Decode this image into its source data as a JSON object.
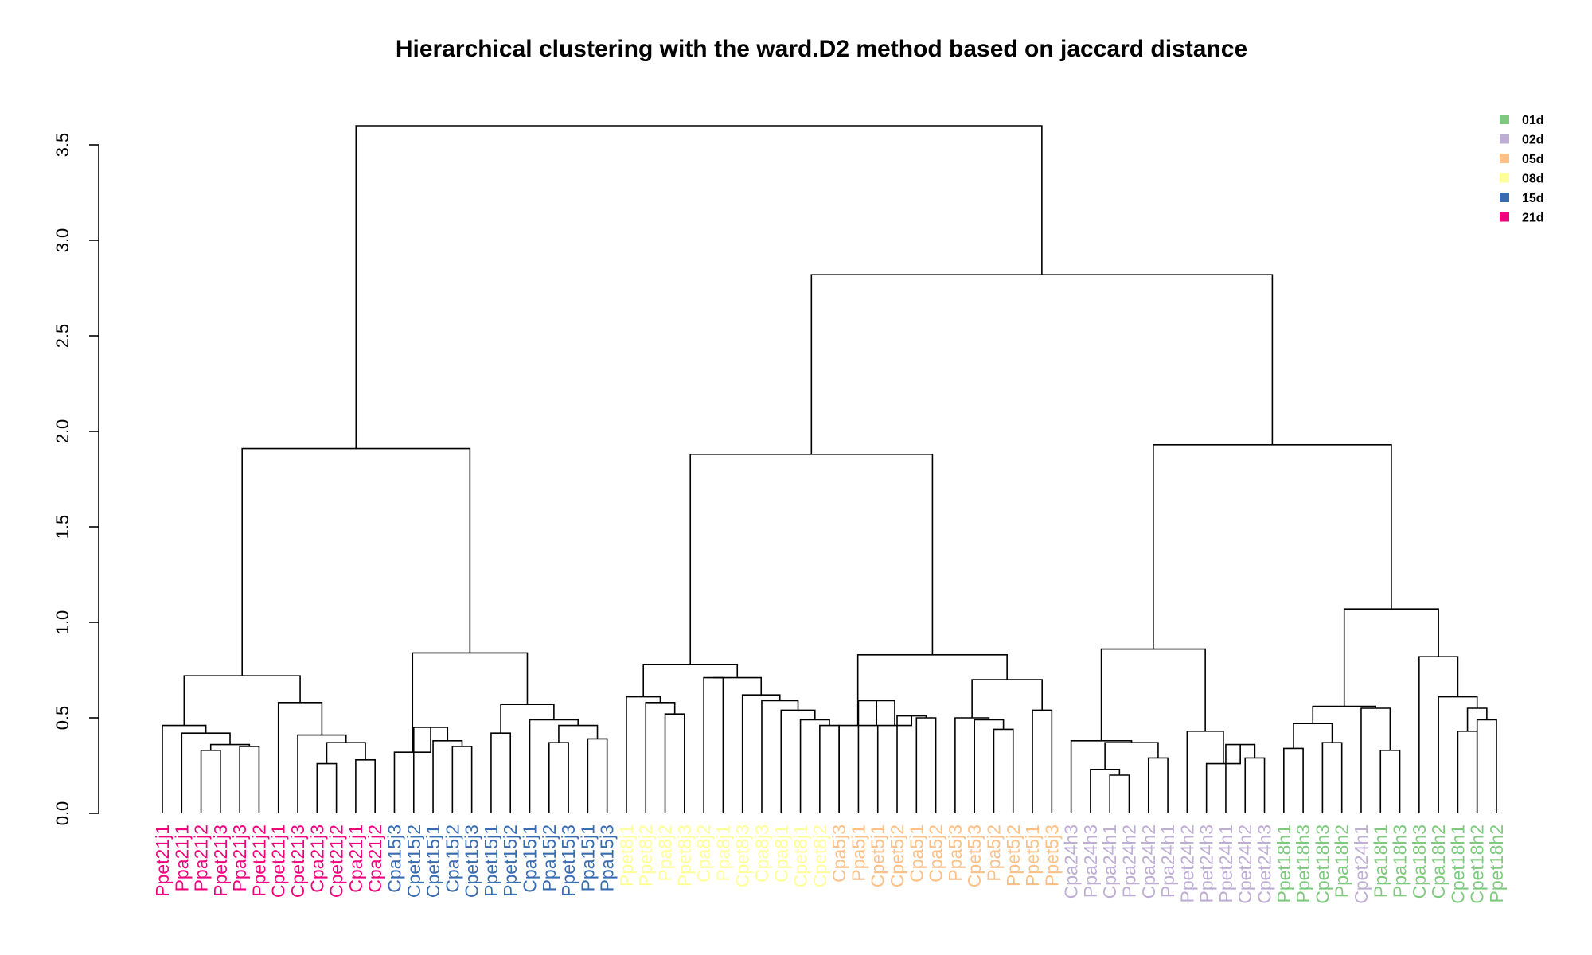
{
  "chart_data": {
    "type": "dendrogram",
    "title": "Hierarchical clustering with the ward.D2 method based on jaccard distance",
    "xlabel": "",
    "ylabel": "",
    "ylim": [
      0,
      3.6
    ],
    "y_ticks": [
      "0.0",
      "0.5",
      "1.0",
      "1.5",
      "2.0",
      "2.5",
      "3.0",
      "3.5"
    ],
    "legend_position": "top-right",
    "legend": [
      {
        "label": "01d",
        "color": "#7fc97f"
      },
      {
        "label": "02d",
        "color": "#beaed4"
      },
      {
        "label": "05d",
        "color": "#fdc086"
      },
      {
        "label": "08d",
        "color": "#ffff99"
      },
      {
        "label": "15d",
        "color": "#386cb0"
      },
      {
        "label": "21d",
        "color": "#f0027f"
      }
    ],
    "leaves": [
      {
        "label": "Ppet21j1",
        "group": "21d"
      },
      {
        "label": "Ppa21j1",
        "group": "21d"
      },
      {
        "label": "Ppa21j2",
        "group": "21d"
      },
      {
        "label": "Ppet21j3",
        "group": "21d"
      },
      {
        "label": "Ppa21j3",
        "group": "21d"
      },
      {
        "label": "Ppet21j2",
        "group": "21d"
      },
      {
        "label": "Cpet21j1",
        "group": "21d"
      },
      {
        "label": "Cpet21j3",
        "group": "21d"
      },
      {
        "label": "Cpa21j3",
        "group": "21d"
      },
      {
        "label": "Cpet21j2",
        "group": "21d"
      },
      {
        "label": "Cpa21j1",
        "group": "21d"
      },
      {
        "label": "Cpa21j2",
        "group": "21d"
      },
      {
        "label": "Cpa15j3",
        "group": "15d"
      },
      {
        "label": "Cpet15j2",
        "group": "15d"
      },
      {
        "label": "Cpet15j1",
        "group": "15d"
      },
      {
        "label": "Cpa15j2",
        "group": "15d"
      },
      {
        "label": "Cpet15j3",
        "group": "15d"
      },
      {
        "label": "Ppet15j1",
        "group": "15d"
      },
      {
        "label": "Ppet15j2",
        "group": "15d"
      },
      {
        "label": "Cpa15j1",
        "group": "15d"
      },
      {
        "label": "Ppa15j2",
        "group": "15d"
      },
      {
        "label": "Ppet15j3",
        "group": "15d"
      },
      {
        "label": "Ppa15j1",
        "group": "15d"
      },
      {
        "label": "Ppa15j3",
        "group": "15d"
      },
      {
        "label": "Ppet8j1",
        "group": "08d"
      },
      {
        "label": "Ppet8j2",
        "group": "08d"
      },
      {
        "label": "Ppa8j2",
        "group": "08d"
      },
      {
        "label": "Ppet8j3",
        "group": "08d"
      },
      {
        "label": "Cpa8j2",
        "group": "08d"
      },
      {
        "label": "Ppa8j1",
        "group": "08d"
      },
      {
        "label": "Cpet8j3",
        "group": "08d"
      },
      {
        "label": "Cpa8j3",
        "group": "08d"
      },
      {
        "label": "Cpa8j1",
        "group": "08d"
      },
      {
        "label": "Cpet8j1",
        "group": "08d"
      },
      {
        "label": "Cpet8j2",
        "group": "08d"
      },
      {
        "label": "Cpa5j3",
        "group": "05d"
      },
      {
        "label": "Ppa5j1",
        "group": "05d"
      },
      {
        "label": "Cpet5j1",
        "group": "05d"
      },
      {
        "label": "Cpet5j2",
        "group": "05d"
      },
      {
        "label": "Cpa5j1",
        "group": "05d"
      },
      {
        "label": "Cpa5j2",
        "group": "05d"
      },
      {
        "label": "Ppa5j3",
        "group": "05d"
      },
      {
        "label": "Cpet5j3",
        "group": "05d"
      },
      {
        "label": "Ppa5j2",
        "group": "05d"
      },
      {
        "label": "Ppet5j2",
        "group": "05d"
      },
      {
        "label": "Ppet5j1",
        "group": "05d"
      },
      {
        "label": "Ppet5j3",
        "group": "05d"
      },
      {
        "label": "Cpa24h3",
        "group": "02d"
      },
      {
        "label": "Ppa24h3",
        "group": "02d"
      },
      {
        "label": "Cpa24h1",
        "group": "02d"
      },
      {
        "label": "Ppa24h2",
        "group": "02d"
      },
      {
        "label": "Cpa24h2",
        "group": "02d"
      },
      {
        "label": "Ppa24h1",
        "group": "02d"
      },
      {
        "label": "Ppet24h2",
        "group": "02d"
      },
      {
        "label": "Ppet24h3",
        "group": "02d"
      },
      {
        "label": "Ppet24h1",
        "group": "02d"
      },
      {
        "label": "Cpet24h2",
        "group": "02d"
      },
      {
        "label": "Cpet24h3",
        "group": "02d"
      },
      {
        "label": "Ppet18h1",
        "group": "01d"
      },
      {
        "label": "Ppet18h3",
        "group": "01d"
      },
      {
        "label": "Cpet18h3",
        "group": "01d"
      },
      {
        "label": "Ppa18h2",
        "group": "01d"
      },
      {
        "label": "Cpet24h1",
        "group": "02d"
      },
      {
        "label": "Ppa18h1",
        "group": "01d"
      },
      {
        "label": "Ppa18h3",
        "group": "01d"
      },
      {
        "label": "Cpa18h3",
        "group": "01d"
      },
      {
        "label": "Cpa18h2",
        "group": "01d"
      },
      {
        "label": "Cpet18h1",
        "group": "01d"
      },
      {
        "label": "Cpet18h2",
        "group": "01d"
      },
      {
        "label": "Ppet18h2",
        "group": "01d"
      }
    ],
    "merges": [
      {
        "a": 3,
        "b": 4,
        "h": 0.33
      },
      {
        "a": 5,
        "b": 6,
        "h": 0.35
      },
      {
        "a": "m1",
        "b": "m2",
        "h": 0.36
      },
      {
        "a": 2,
        "b": "m3",
        "h": 0.42
      },
      {
        "a": 1,
        "b": "m4",
        "h": 0.46
      },
      {
        "a": 9,
        "b": 10,
        "h": 0.26
      },
      {
        "a": 11,
        "b": 12,
        "h": 0.28
      },
      {
        "a": "m6",
        "b": "m7",
        "h": 0.37
      },
      {
        "a": 8,
        "b": "m8",
        "h": 0.41
      },
      {
        "a": 7,
        "b": "m9",
        "h": 0.58
      },
      {
        "a": "m5",
        "b": "m10",
        "h": 0.72
      },
      {
        "a": 16,
        "b": 17,
        "h": 0.35
      },
      {
        "a": 15,
        "b": "m12",
        "h": 0.38
      },
      {
        "a": 14,
        "b": "m13",
        "h": 0.45
      },
      {
        "a": 13,
        "b": "m14",
        "h": 0.32
      },
      {
        "a": 21,
        "b": 22,
        "h": 0.37
      },
      {
        "a": 23,
        "b": 24,
        "h": 0.39
      },
      {
        "a": "m16",
        "b": "m17",
        "h": 0.46
      },
      {
        "a": 20,
        "b": "m18",
        "h": 0.49
      },
      {
        "a": 18,
        "b": 19,
        "h": 0.42
      },
      {
        "a": "m20",
        "b": "m19",
        "h": 0.57
      },
      {
        "a": "m15",
        "b": "m21",
        "h": 0.84
      },
      {
        "a": "m11",
        "b": "m22",
        "h": 1.91
      },
      {
        "a": 27,
        "b": 28,
        "h": 0.52
      },
      {
        "a": 26,
        "b": "m24",
        "h": 0.58
      },
      {
        "a": 25,
        "b": "m25",
        "h": 0.61
      },
      {
        "a": 35,
        "b": 36,
        "h": 0.46
      },
      {
        "a": 34,
        "b": "m27",
        "h": 0.49
      },
      {
        "a": 33,
        "b": "m28",
        "h": 0.54
      },
      {
        "a": 32,
        "b": "m29",
        "h": 0.59
      },
      {
        "a": 31,
        "b": "m30",
        "h": 0.62
      },
      {
        "a": 29,
        "b": 30,
        "h": 0.71
      },
      {
        "a": "m32",
        "b": "m31",
        "h": 0.71
      },
      {
        "a": "m26",
        "b": "m33",
        "h": 0.78
      },
      {
        "a": 40,
        "b": 41,
        "h": 0.5
      },
      {
        "a": 39,
        "b": "m35",
        "h": 0.51
      },
      {
        "a": 38,
        "b": "m36",
        "h": 0.46
      },
      {
        "a": 37,
        "b": "m37",
        "h": 0.59
      },
      {
        "a": 36,
        "b": "m38",
        "h": 0.46
      },
      {
        "a": 44,
        "b": 45,
        "h": 0.44
      },
      {
        "a": 43,
        "b": "m40",
        "h": 0.49
      },
      {
        "a": 42,
        "b": "m41",
        "h": 0.5
      },
      {
        "a": 46,
        "b": 47,
        "h": 0.54
      },
      {
        "a": "m42",
        "b": "m43",
        "h": 0.7
      },
      {
        "a": "m39",
        "b": "m44",
        "h": 0.83
      },
      {
        "a": "m34",
        "b": "m45",
        "h": 1.88
      },
      {
        "a": 50,
        "b": 51,
        "h": 0.2
      },
      {
        "a": 49,
        "b": "m47",
        "h": 0.23
      },
      {
        "a": 52,
        "b": 53,
        "h": 0.29
      },
      {
        "a": "m48",
        "b": "m49",
        "h": 0.37
      },
      {
        "a": 48,
        "b": "m50",
        "h": 0.38
      },
      {
        "a": 57,
        "b": 58,
        "h": 0.29
      },
      {
        "a": 56,
        "b": "m52",
        "h": 0.36
      },
      {
        "a": 55,
        "b": "m53",
        "h": 0.26
      },
      {
        "a": 54,
        "b": "m54",
        "h": 0.43
      },
      {
        "a": "m51",
        "b": "m55",
        "h": 0.86
      },
      {
        "a": 59,
        "b": 60,
        "h": 0.34
      },
      {
        "a": 61,
        "b": 62,
        "h": 0.37
      },
      {
        "a": "m57",
        "b": "m58",
        "h": 0.47
      },
      {
        "a": 64,
        "b": 65,
        "h": 0.33
      },
      {
        "a": 63,
        "b": "m60",
        "h": 0.55
      },
      {
        "a": "m59",
        "b": "m61",
        "h": 0.56
      },
      {
        "a": 68,
        "b": 69,
        "h": 0.43
      },
      {
        "a": 69,
        "b": 70,
        "h": 0.49
      },
      {
        "a": "m63",
        "b": "m64",
        "h": 0.55
      },
      {
        "a": 67,
        "b": "m65",
        "h": 0.61
      },
      {
        "a": 66,
        "b": "m66",
        "h": 0.82
      },
      {
        "a": "m62",
        "b": "m67",
        "h": 1.07
      },
      {
        "a": "m56",
        "b": "m68",
        "h": 1.93
      },
      {
        "a": "m46",
        "b": "m69",
        "h": 2.82
      },
      {
        "a": "m23",
        "b": "m70",
        "h": 3.6
      }
    ]
  }
}
